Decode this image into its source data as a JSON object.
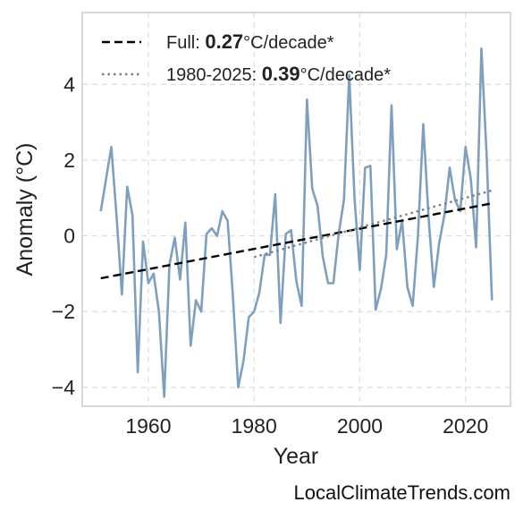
{
  "chart_data": {
    "type": "line",
    "xlabel": "Year",
    "ylabel": "Anomaly (°C)",
    "xlim": [
      1947.5,
      2028.5
    ],
    "ylim": [
      -4.5,
      5.9
    ],
    "xticks": [
      1960,
      1980,
      2000,
      2020
    ],
    "yticks": [
      -4,
      -2,
      0,
      2,
      4
    ],
    "ytick_labels": [
      "−4",
      "−2",
      "0",
      "2",
      "4"
    ],
    "grid": true,
    "legend_position": "top-left",
    "series": [
      {
        "style": "solid",
        "color": "#7f9fbf",
        "x": [
          1951,
          1952,
          1953,
          1954,
          1955,
          1956,
          1957,
          1958,
          1959,
          1960,
          1961,
          1962,
          1963,
          1964,
          1965,
          1966,
          1967,
          1968,
          1969,
          1970,
          1971,
          1972,
          1973,
          1974,
          1975,
          1976,
          1977,
          1978,
          1979,
          1980,
          1981,
          1982,
          1983,
          1984,
          1985,
          1986,
          1987,
          1988,
          1989,
          1990,
          1991,
          1992,
          1993,
          1994,
          1995,
          1996,
          1997,
          1998,
          1999,
          2000,
          2001,
          2002,
          2003,
          2004,
          2005,
          2006,
          2007,
          2008,
          2009,
          2010,
          2011,
          2012,
          2013,
          2014,
          2015,
          2016,
          2017,
          2018,
          2019,
          2020,
          2021,
          2022,
          2023,
          2024,
          2025
        ],
        "y": [
          0.65,
          1.5,
          2.35,
          0.5,
          -1.55,
          1.3,
          0.55,
          -3.6,
          -0.15,
          -1.25,
          -1.0,
          -2.0,
          -4.25,
          -0.75,
          -0.05,
          -1.15,
          0.35,
          -2.9,
          -1.7,
          -2.0,
          0.05,
          0.2,
          0.0,
          0.65,
          0.4,
          -1.6,
          -4.0,
          -3.3,
          -2.15,
          -2.0,
          -1.5,
          -0.5,
          -0.5,
          1.1,
          -2.3,
          0.05,
          0.15,
          -1.2,
          -1.85,
          3.6,
          1.25,
          0.8,
          -0.55,
          -1.25,
          -1.25,
          0.05,
          0.95,
          4.25,
          1.0,
          -0.9,
          1.8,
          1.85,
          -1.95,
          -1.4,
          -0.5,
          3.45,
          -0.35,
          0.4,
          -1.35,
          -1.85,
          0.0,
          2.95,
          0.5,
          -1.35,
          -0.2,
          0.55,
          1.8,
          0.95,
          0.65,
          2.35,
          1.5,
          -0.3,
          4.95,
          2.1,
          -1.7
        ]
      },
      {
        "name": "Full: 0.27°C/decade*",
        "style": "dashed",
        "color": "#000000",
        "x": [
          1951,
          2025
        ],
        "y": [
          -1.12,
          0.86
        ]
      },
      {
        "name": "1980-2025: 0.39°C/decade*",
        "style": "dotted",
        "color": "#7f7f7f",
        "x": [
          1980,
          2025
        ],
        "y": [
          -0.56,
          1.2
        ]
      }
    ],
    "legend": [
      {
        "prefix": "Full: ",
        "bold": "0.27",
        "suffix": "°C/decade*"
      },
      {
        "prefix": "1980-2025: ",
        "bold": "0.39",
        "suffix": "°C/decade*"
      }
    ]
  },
  "watermark": "LocalClimateTrends.com"
}
